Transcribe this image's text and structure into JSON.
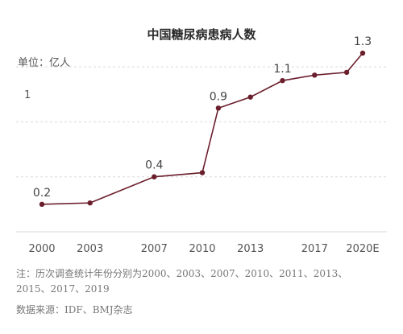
{
  "chart_data": {
    "type": "line",
    "title": "中国糖尿病患病人数",
    "unit_label": "单位：亿人",
    "x": [
      2000,
      2003,
      2007,
      2010,
      2011,
      2013,
      2015,
      2017,
      2019,
      2020
    ],
    "values": [
      0.2,
      0.21,
      0.4,
      0.43,
      0.9,
      0.98,
      1.1,
      1.14,
      1.16,
      1.3
    ],
    "x_ticks": [
      2000,
      2003,
      2007,
      2010,
      2013,
      2017,
      2020
    ],
    "x_tick_labels": [
      "2000",
      "2003",
      "2007",
      "2010",
      "2013",
      "2017",
      "2020E"
    ],
    "y_ticks": [
      1
    ],
    "y_tick_labels": [
      "1"
    ],
    "data_labels": [
      {
        "x": 2000,
        "y": 0.2,
        "text": "0.2"
      },
      {
        "x": 2007,
        "y": 0.4,
        "text": "0.4"
      },
      {
        "x": 2011,
        "y": 0.9,
        "text": "0.9"
      },
      {
        "x": 2015,
        "y": 1.1,
        "text": "1.1"
      },
      {
        "x": 2020,
        "y": 1.3,
        "text": "1.3"
      }
    ],
    "xlim": [
      2000,
      2020
    ],
    "ylim": [
      0,
      1.3
    ],
    "grid": "horizontal",
    "colors": {
      "line": "#6b1e2b",
      "marker": "#6b1e2b",
      "grid": "#d9d9d9"
    }
  },
  "notes": {
    "line1": "注：历次调查统计年份分别为2000、2003、2007、2010、2011、2013、",
    "line2": "2015、2017、2019",
    "source": "数据来源：IDF、BMJ杂志"
  }
}
